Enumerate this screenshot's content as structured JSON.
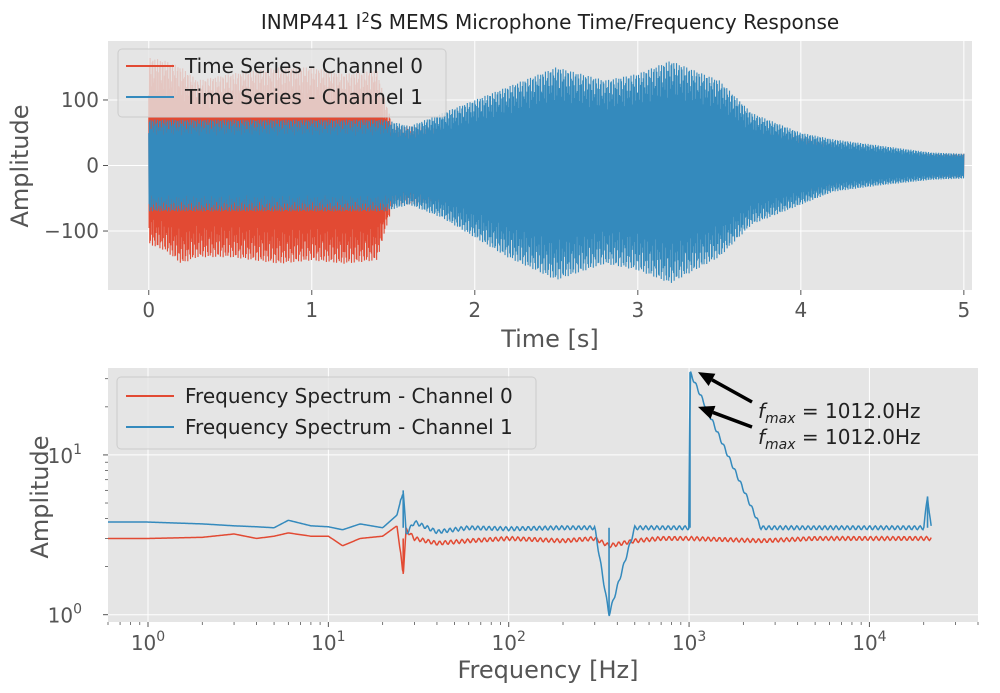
{
  "figure": {
    "title_main": "INMP441 I",
    "title_sup": "2",
    "title_rest": "S MEMS Microphone Time/Frequency Response"
  },
  "colors": {
    "channel0": "#E24A33",
    "channel1": "#348ABD",
    "plot_bg": "#E5E5E5",
    "grid": "#FFFFFF",
    "text": "#555555"
  },
  "chart_data": [
    {
      "type": "line",
      "xlabel": "Time [s]",
      "ylabel": "Amplitude",
      "xlim": [
        -0.25,
        5.05
      ],
      "ylim": [
        -190,
        190
      ],
      "xticks": [
        0,
        1,
        2,
        3,
        4,
        5
      ],
      "yticks": [
        -100,
        0,
        100
      ],
      "ytick_labels": [
        "−100",
        "0",
        "100"
      ],
      "grid": true,
      "legend_position": "top-left",
      "series": [
        {
          "name": "Time Series - Channel 0",
          "color": "#E24A33",
          "envelope_t": [
            0,
            0.1,
            0.2,
            0.3,
            0.5,
            0.8,
            1.0,
            1.2,
            1.4,
            1.45,
            1.5,
            1.55,
            2.0,
            2.5,
            3.0,
            3.5,
            4.0,
            4.3,
            4.5,
            4.7,
            5.0
          ],
          "envelope_upper": [
            165,
            160,
            150,
            130,
            140,
            150,
            150,
            140,
            145,
            100,
            60,
            60,
            60,
            60,
            60,
            60,
            45,
            25,
            15,
            18,
            18
          ],
          "envelope_lower": [
            -120,
            -130,
            -150,
            -140,
            -140,
            -150,
            -145,
            -150,
            -145,
            -100,
            -60,
            -60,
            -60,
            -60,
            -60,
            -60,
            -45,
            -25,
            -15,
            -18,
            -18
          ]
        },
        {
          "name": "Time Series - Channel 1",
          "color": "#348ABD",
          "envelope_t": [
            0,
            0.2,
            0.5,
            1.0,
            1.45,
            1.6,
            1.8,
            2.0,
            2.2,
            2.5,
            2.8,
            3.0,
            3.2,
            3.5,
            3.7,
            4.0,
            4.2,
            4.5,
            4.8,
            5.0
          ],
          "envelope_upper": [
            70,
            70,
            70,
            70,
            70,
            60,
            80,
            100,
            120,
            150,
            130,
            140,
            160,
            130,
            80,
            50,
            40,
            30,
            20,
            18
          ],
          "envelope_lower": [
            -70,
            -70,
            -70,
            -70,
            -70,
            -60,
            -80,
            -110,
            -140,
            -175,
            -150,
            -160,
            -180,
            -140,
            -90,
            -60,
            -40,
            -30,
            -22,
            -20
          ]
        }
      ]
    },
    {
      "type": "line",
      "xscale": "log",
      "yscale": "log",
      "xlabel": "Frequency [Hz]",
      "ylabel": "Amplitude",
      "xlim": [
        0.6,
        40000
      ],
      "ylim": [
        0.9,
        35
      ],
      "xticks": [
        1,
        10,
        100,
        1000,
        10000
      ],
      "xtick_base": "10",
      "xtick_exponents": [
        "0",
        "1",
        "2",
        "3",
        "4"
      ],
      "yticks": [
        1,
        10
      ],
      "ytick_base": "10",
      "ytick_exponents": [
        "0",
        "1"
      ],
      "grid": true,
      "legend_position": "top-left",
      "series": [
        {
          "name": "Frequency Spectrum - Channel 0",
          "color": "#E24A33",
          "baseline": 3.0,
          "freq": [
            0.6,
            1,
            2,
            3,
            4,
            5,
            6,
            8,
            10,
            12,
            15,
            20,
            24,
            26,
            27,
            30,
            40,
            60,
            100,
            200,
            300,
            360,
            500,
            700,
            1000,
            1012,
            2500,
            5000,
            10000,
            20000,
            22000
          ],
          "amplitude": [
            3.0,
            3.0,
            3.05,
            3.2,
            3.0,
            3.1,
            3.25,
            3.1,
            3.1,
            2.7,
            3.0,
            3.1,
            3.6,
            1.8,
            3.4,
            3.0,
            2.8,
            2.9,
            3.0,
            2.9,
            3.0,
            2.7,
            2.9,
            3.0,
            3.0,
            3.0,
            2.9,
            3.0,
            3.0,
            3.0,
            3.0
          ]
        },
        {
          "name": "Frequency Spectrum - Channel 1",
          "color": "#348ABD",
          "baseline": 3.5,
          "freq": [
            0.6,
            1,
            2,
            3,
            4,
            5,
            6,
            8,
            10,
            12,
            15,
            20,
            24,
            26,
            27,
            30,
            40,
            60,
            100,
            200,
            300,
            360,
            500,
            700,
            1000,
            1012,
            2500,
            5000,
            10000,
            20000,
            21000,
            22000
          ],
          "amplitude": [
            3.8,
            3.8,
            3.7,
            3.6,
            3.55,
            3.5,
            3.9,
            3.6,
            3.55,
            3.4,
            3.7,
            3.5,
            4.2,
            6.0,
            3.2,
            3.8,
            3.3,
            3.5,
            3.45,
            3.5,
            3.5,
            1.0,
            3.5,
            3.5,
            3.5,
            33.0,
            3.5,
            3.5,
            3.5,
            3.5,
            5.5,
            3.5
          ]
        }
      ],
      "annotations": [
        {
          "prefix": "f",
          "sub": "max",
          "text": " = 1012.0Hz",
          "point_freq": 1012,
          "point_amp": 33
        },
        {
          "prefix": "f",
          "sub": "max",
          "text": " = 1012.0Hz",
          "point_freq": 1012,
          "point_amp": 20
        }
      ]
    }
  ]
}
